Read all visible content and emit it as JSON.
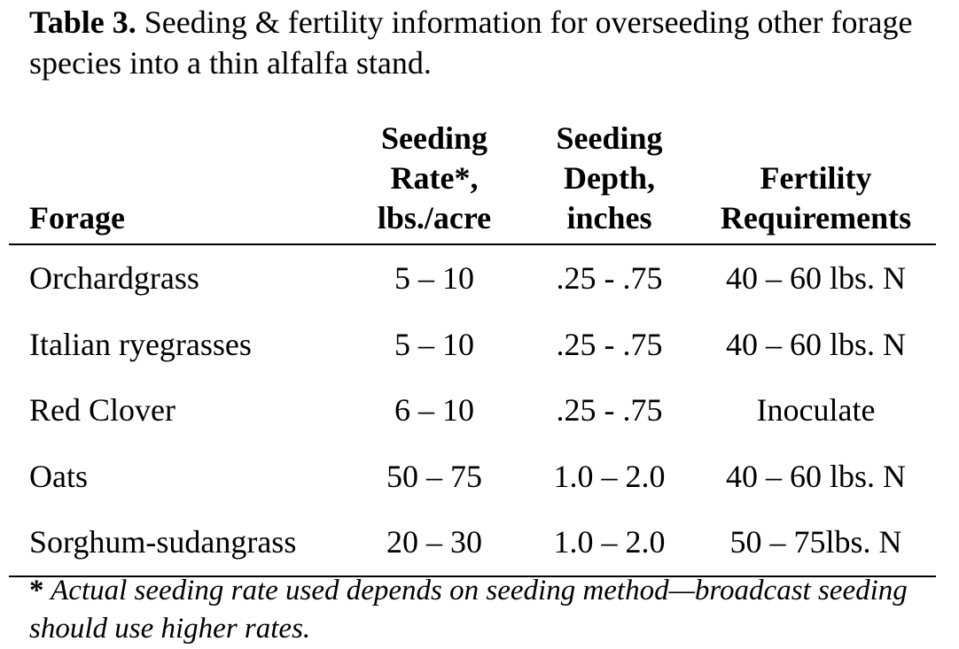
{
  "caption": {
    "label": "Table 3.",
    "text": " Seeding & fertility information for overseeding other forage species into a thin alfalfa stand."
  },
  "table": {
    "headers": {
      "forage": "Forage",
      "rate": [
        "Seeding",
        "Rate*,",
        "lbs./acre"
      ],
      "depth": [
        "Seeding",
        "Depth,",
        "inches"
      ],
      "fertility": [
        "Fertility",
        "Requirements"
      ]
    },
    "rows": [
      {
        "forage": "Orchardgrass",
        "rate": "5 – 10",
        "depth": ".25 - .75",
        "fertility": "40 – 60 lbs. N"
      },
      {
        "forage": "Italian ryegrasses",
        "rate": "5 – 10",
        "depth": ".25 - .75",
        "fertility": "40 – 60 lbs. N"
      },
      {
        "forage": "Red Clover",
        "rate": "6 – 10",
        "depth": ".25 - .75",
        "fertility": "Inoculate"
      },
      {
        "forage": "Oats",
        "rate": "50 – 75",
        "depth": "1.0 – 2.0",
        "fertility": "40 – 60 lbs. N"
      },
      {
        "forage": "Sorghum-sudangrass",
        "rate": "20 – 30",
        "depth": "1.0 – 2.0",
        "fertility": "50 – 75lbs. N"
      }
    ]
  },
  "footnote": {
    "marker": "*",
    "text": " Actual seeding rate used depends on seeding method—broadcast seeding should use higher rates."
  }
}
